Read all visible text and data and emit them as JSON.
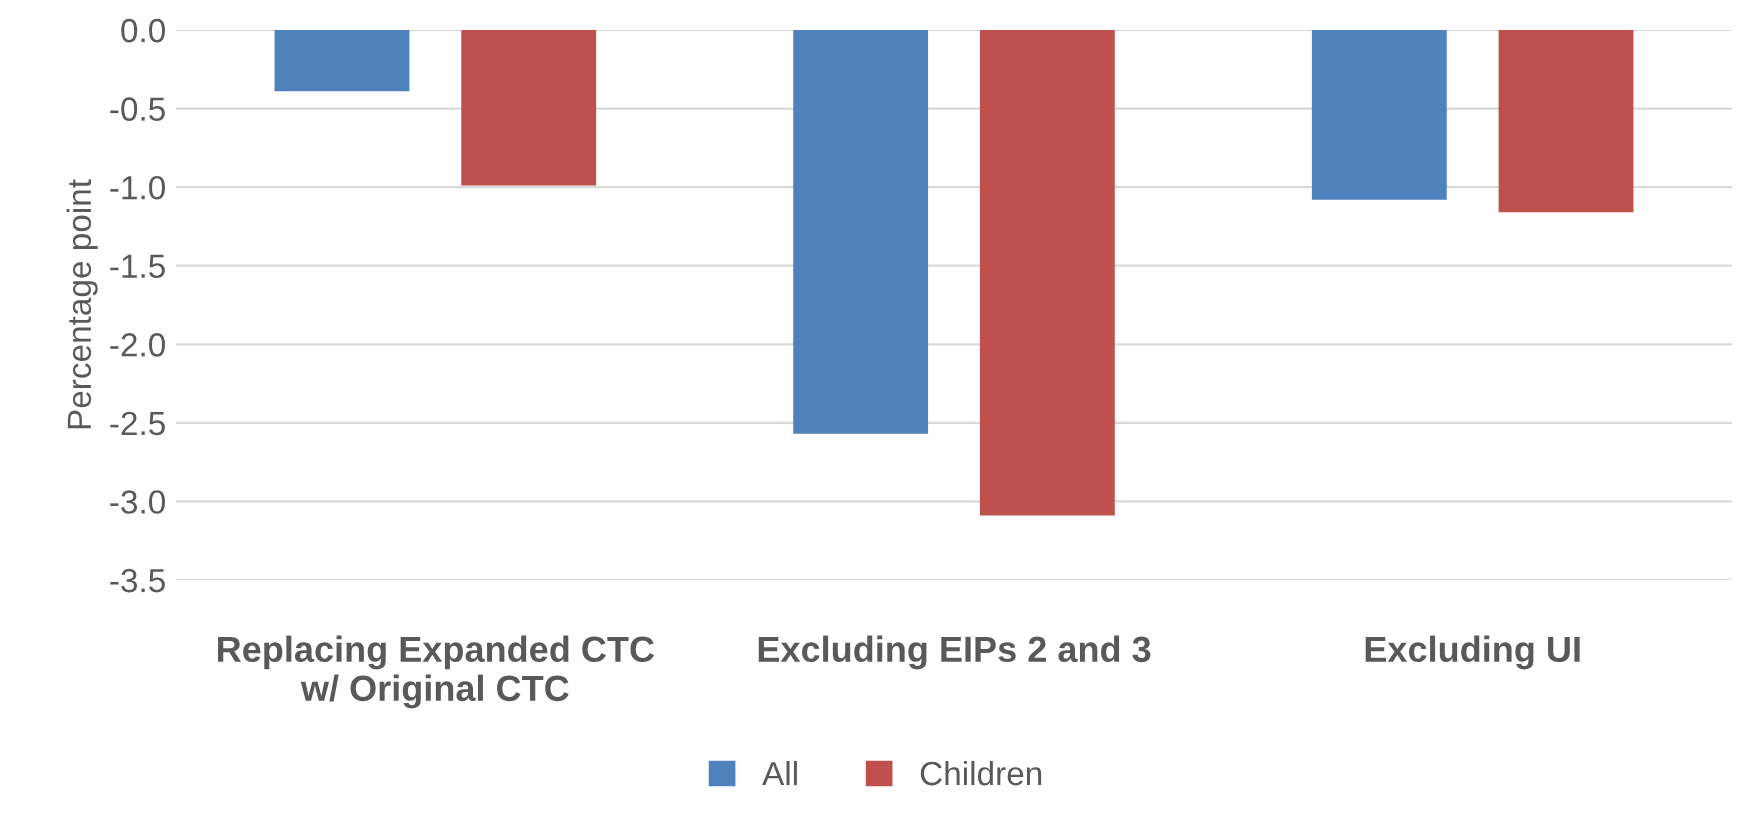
{
  "chart_data": {
    "type": "bar",
    "ylabel": "Percentage point",
    "categories": [
      "Replacing Expanded CTC\nw/ Original CTC",
      "Excluding EIPs 2 and 3",
      "Excluding UI"
    ],
    "series": [
      {
        "name": "All",
        "color": "#4f81bd",
        "values": [
          -0.39,
          -2.57,
          -1.08
        ]
      },
      {
        "name": "Children",
        "color": "#c0504d",
        "values": [
          -0.99,
          -3.09,
          -1.16
        ]
      }
    ],
    "ylim": [
      -3.5,
      0.0
    ],
    "yticks": [
      {
        "value": 0,
        "label": "0.0"
      },
      -0.5,
      {
        "value": -1,
        "label": "-1.0"
      },
      -1.5,
      {
        "value": -2,
        "label": "-2.0"
      },
      -2.5,
      {
        "value": -3,
        "label": "-3.0"
      },
      -3.5
    ],
    "grid": "y",
    "legend": "bottom"
  }
}
